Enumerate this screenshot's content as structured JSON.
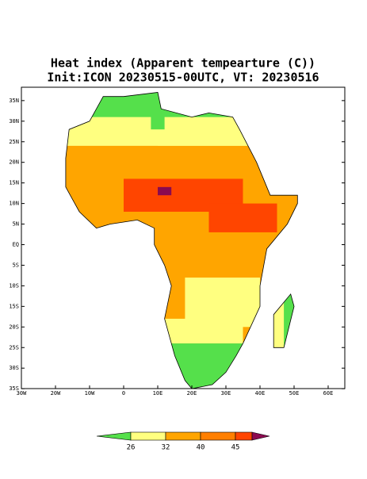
{
  "title": "Heat index (Apparent tempearture (C))",
  "subtitle": "Init:ICON 20230515-00UTC, VT: 20230516",
  "lat_labels": [
    "35N",
    "30N",
    "25N",
    "20N",
    "15N",
    "10N",
    "5N",
    "EQ",
    "5S",
    "10S",
    "15S",
    "20S",
    "25S",
    "30S",
    "35S"
  ],
  "lon_labels": [
    "30W",
    "20W",
    "10W",
    "0",
    "10E",
    "20E",
    "30E",
    "40E",
    "50E",
    "60E"
  ],
  "colorbar_labels": [
    "26",
    "32",
    "40",
    "45"
  ]
}
